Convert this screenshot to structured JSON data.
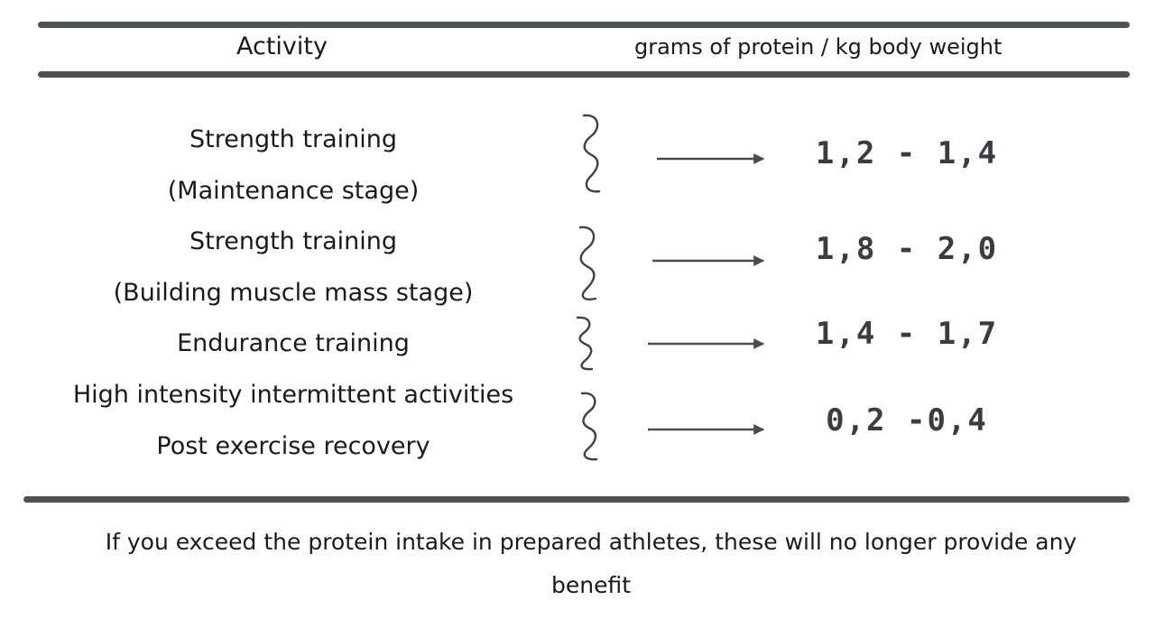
{
  "header": {
    "activity": "Activity",
    "protein": "grams of protein  / kg body weight"
  },
  "rows": [
    {
      "lines": [
        "Strength training",
        "(Maintenance stage)"
      ],
      "value": "1,2 - 1,4"
    },
    {
      "lines": [
        "Strength training",
        "(Building muscle mass stage)"
      ],
      "value": "1,8 - 2,0"
    },
    {
      "lines": [
        "Endurance training"
      ],
      "value": "1,4 - 1,7"
    },
    {
      "lines": [
        "High intensity intermittent activities",
        "Post exercise recovery"
      ],
      "value": "0,2 -0,4"
    }
  ],
  "footer": {
    "line1": "If you exceed the protein intake in prepared athletes, these will no longer provide any",
    "line2": "benefit"
  }
}
